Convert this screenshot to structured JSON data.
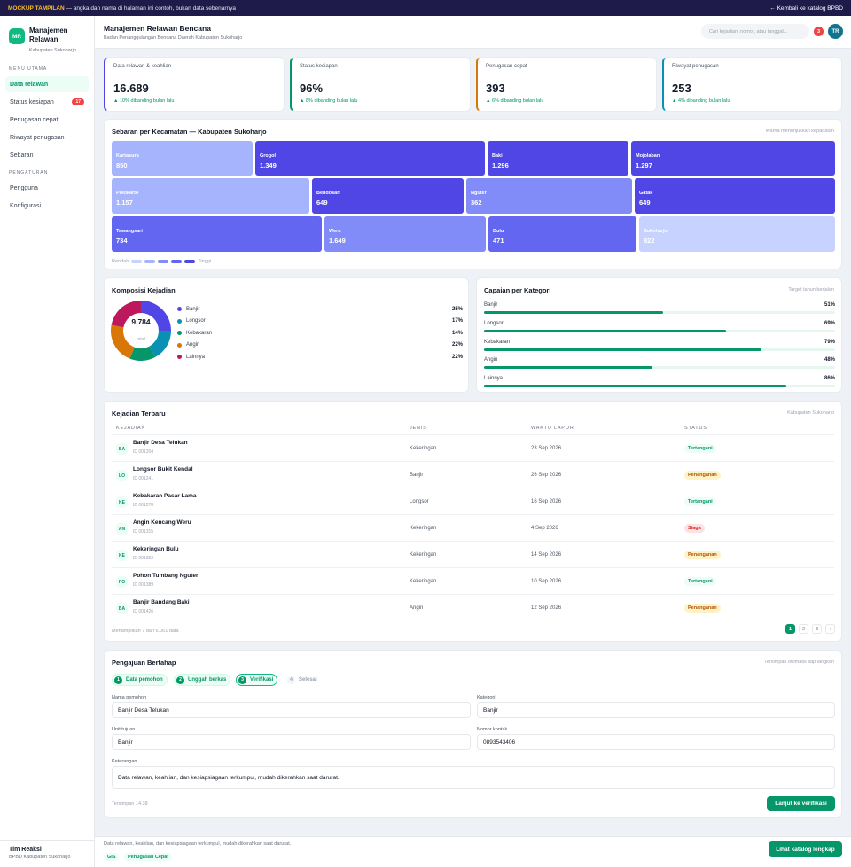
{
  "topbar": {
    "tag": "MOCKUP TAMPILAN",
    "note": "— angka dan nama di halaman ini contoh, bukan data sebenarnya",
    "back": "← Kembali ke katalog BPBD"
  },
  "sidebar": {
    "logo": "MR",
    "title": "Manajemen Relawan",
    "subtitle": "Kabupaten Sukoharjo",
    "menu_label": "MENU UTAMA",
    "items": [
      {
        "label": "Data relawan"
      },
      {
        "label": "Status kesiapan",
        "badge": "17"
      },
      {
        "label": "Penugasan cepat"
      },
      {
        "label": "Riwayat penugasan"
      },
      {
        "label": "Sebaran"
      }
    ],
    "settings_label": "PENGATURAN",
    "settings": [
      {
        "label": "Pengguna"
      },
      {
        "label": "Konfigurasi"
      }
    ],
    "footer_name": "Tim Reaksi",
    "footer_role": "BPBD Kabupaten Sukoharjo"
  },
  "header": {
    "title": "Manajemen Relawan Bencana",
    "subtitle": "Badan Penanggulangan Bencana Daerah Kabupaten Sukoharjo",
    "search_placeholder": "Cari kejadian, nomor, atau tanggal...",
    "notif_count": "3",
    "avatar": "TR"
  },
  "stats": [
    {
      "label": "Data relawan & keahlian",
      "value": "16.689",
      "delta": "▲ 10% dibanding bulan lalu",
      "accent": "#4f46e5"
    },
    {
      "label": "Status kesiapan",
      "value": "96%",
      "delta": "▲ 8% dibanding bulan lalu",
      "accent": "#059669"
    },
    {
      "label": "Penugasan cepat",
      "value": "393",
      "delta": "▲ 6% dibanding bulan lalu",
      "accent": "#d97706"
    },
    {
      "label": "Riwayat penugasan",
      "value": "253",
      "delta": "▲ 4% dibanding bulan lalu",
      "accent": "#0891b2"
    }
  ],
  "treemap": {
    "title": "Sebaran per Kecamatan — Kabupaten Sukoharjo",
    "note": "Warna menunjukkan kepadatan",
    "tiles": [
      {
        "name": "Kartasura",
        "value": "850",
        "color": "#a5b4fc"
      },
      {
        "name": "Grogol",
        "value": "1.349",
        "color": "#4f46e5"
      },
      {
        "name": "Baki",
        "value": "1.296",
        "color": "#4f46e5"
      },
      {
        "name": "Mojolaban",
        "value": "1.297",
        "color": "#4f46e5"
      },
      {
        "name": "Polokarto",
        "value": "1.157",
        "color": "#a5b4fc"
      },
      {
        "name": "Bendosari",
        "value": "649",
        "color": "#4f46e5"
      },
      {
        "name": "Nguter",
        "value": "362",
        "color": "#818cf8"
      },
      {
        "name": "Gatak",
        "value": "649",
        "color": "#4f46e5"
      },
      {
        "name": "Tawangsari",
        "value": "734",
        "color": "#6366f1"
      },
      {
        "name": "Weru",
        "value": "1.649",
        "color": "#818cf8"
      },
      {
        "name": "Bulu",
        "value": "471",
        "color": "#6366f1"
      },
      {
        "name": "Sukoharjo",
        "value": "822",
        "color": "#c7d2fe"
      }
    ],
    "legend_low": "Rendah",
    "legend_high": "Tinggi",
    "scale_colors": [
      "#c7d2fe",
      "#a5b4fc",
      "#818cf8",
      "#6366f1",
      "#4f46e5"
    ]
  },
  "donut": {
    "title": "Komposisi Kejadian",
    "total": "9.784",
    "total_label": "total",
    "items": [
      {
        "label": "Banjir",
        "pct": "25%",
        "value": 25,
        "color": "#4f46e5"
      },
      {
        "label": "Longsor",
        "pct": "17%",
        "value": 17,
        "color": "#0891b2"
      },
      {
        "label": "Kebakaran",
        "pct": "14%",
        "value": 14,
        "color": "#059669"
      },
      {
        "label": "Angin",
        "pct": "22%",
        "value": 22,
        "color": "#d97706"
      },
      {
        "label": "Lainnya",
        "pct": "22%",
        "value": 22,
        "color": "#be185d"
      }
    ]
  },
  "capaian": {
    "title": "Capaian per Kategori",
    "note": "Target tahun berjalan",
    "items": [
      {
        "label": "Banjir",
        "pct": "51%",
        "value": 51
      },
      {
        "label": "Longsor",
        "pct": "69%",
        "value": 69
      },
      {
        "label": "Kebakaran",
        "pct": "79%",
        "value": 79
      },
      {
        "label": "Angin",
        "pct": "48%",
        "value": 48
      },
      {
        "label": "Lainnya",
        "pct": "86%",
        "value": 86
      }
    ]
  },
  "table": {
    "title": "Kejadian Terbaru",
    "note": "Kabupaten Sukoharjo",
    "headers": [
      "KEJADIAN",
      "JENIS",
      "WAKTU LAPOR",
      "STATUS"
    ],
    "rows": [
      {
        "icon": "BA",
        "name": "Banjir Desa Telukan",
        "id": "ID 001204",
        "jenis": "Kekeringan",
        "waktu": "23 Sep 2026",
        "status": "Tertangani",
        "status_type": "ok"
      },
      {
        "icon": "LO",
        "name": "Longsor Bukit Kendal",
        "id": "ID 001241",
        "jenis": "Banjir",
        "waktu": "26 Sep 2026",
        "status": "Penanganan",
        "status_type": "warn"
      },
      {
        "icon": "KE",
        "name": "Kebakaran Pasar Lama",
        "id": "ID 001278",
        "jenis": "Longsor",
        "waktu": "16 Sep 2026",
        "status": "Tertangani",
        "status_type": "ok"
      },
      {
        "icon": "AN",
        "name": "Angin Kencang Weru",
        "id": "ID 001315",
        "jenis": "Kekeringan",
        "waktu": "4 Sep 2026",
        "status": "Siaga",
        "status_type": "alert"
      },
      {
        "icon": "KE",
        "name": "Kekeringan Bulu",
        "id": "ID 001352",
        "jenis": "Kekeringan",
        "waktu": "14 Sep 2026",
        "status": "Penanganan",
        "status_type": "warn"
      },
      {
        "icon": "PO",
        "name": "Pohon Tumbang Nguter",
        "id": "ID 001389",
        "jenis": "Kekeringan",
        "waktu": "10 Sep 2026",
        "status": "Tertangani",
        "status_type": "ok"
      },
      {
        "icon": "BA",
        "name": "Banjir Bandang Baki",
        "id": "ID 001426",
        "jenis": "Angin",
        "waktu": "12 Sep 2026",
        "status": "Penanganan",
        "status_type": "warn"
      }
    ],
    "summary": "Menampilkan 7 dari 6.061 data",
    "pages": [
      "1",
      "2",
      "3",
      "›"
    ]
  },
  "form": {
    "title": "Pengajuan Bertahap",
    "note": "Tersimpan otomatis tiap langkah",
    "steps": [
      {
        "num": "1",
        "label": "Data pemohon",
        "state": "done"
      },
      {
        "num": "2",
        "label": "Unggah berkas",
        "state": "done"
      },
      {
        "num": "3",
        "label": "Verifikasi",
        "state": "cur"
      },
      {
        "num": "4",
        "label": "Selesai",
        "state": "todo"
      }
    ],
    "fields": {
      "nama_label": "Nama pemohon",
      "nama_value": "Banjir Desa Telukan",
      "kategori_label": "Kategori",
      "kategori_value": "Banjir",
      "unit_label": "Unit tujuan",
      "unit_value": "Banjir",
      "kontak_label": "Nomor kontak",
      "kontak_value": "0893543406",
      "ket_label": "Keterangan",
      "ket_value": "Data relawan, keahlian, dan kesiapsiagaan terkumpul, mudah dikerahkan saat darurat."
    },
    "saved": "Tersimpan 14.38",
    "submit": "Lanjut ke verifikasi"
  },
  "footer": {
    "text": "Data relawan, keahlian, dan kesiapsiagaan terkumpul, mudah dikerahkan saat darurat.",
    "tags": [
      "GIS",
      "Penugasan Cepat"
    ],
    "cta": "Lihat katalog lengkap"
  }
}
